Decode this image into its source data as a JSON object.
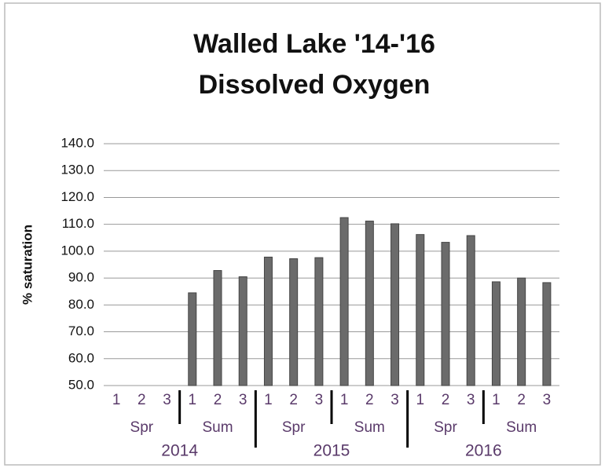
{
  "chart_data": {
    "type": "bar",
    "title": [
      "Walled Lake '14-'16",
      "Dissolved Oxygen"
    ],
    "y_label": "% saturation",
    "groups": [
      {
        "name": "2014",
        "subgroups": [
          {
            "name": "Spr",
            "categories": [
              "1",
              "2",
              "3"
            ]
          },
          {
            "name": "Sum",
            "categories": [
              "1",
              "2",
              "3"
            ]
          }
        ]
      },
      {
        "name": "2015",
        "subgroups": [
          {
            "name": "Spr",
            "categories": [
              "1",
              "2",
              "3"
            ]
          },
          {
            "name": "Sum",
            "categories": [
              "1",
              "2",
              "3"
            ]
          }
        ]
      },
      {
        "name": "2016",
        "subgroups": [
          {
            "name": "Spr",
            "categories": [
              "1",
              "2",
              "3"
            ]
          },
          {
            "name": "Sum",
            "categories": [
              "1",
              "2",
              "3"
            ]
          }
        ]
      }
    ],
    "values": [
      null,
      null,
      null,
      84.5,
      92.8,
      90.5,
      97.8,
      97.2,
      97.6,
      112.5,
      111.2,
      110.2,
      106.2,
      103.3,
      105.8,
      88.6,
      90.0,
      88.3
    ],
    "color": "#6b6b6b",
    "ylim": [
      50,
      140
    ],
    "yticks": [
      {
        "value": 50,
        "label": "50.0"
      },
      {
        "value": 60,
        "label": "60.0"
      },
      {
        "value": 70,
        "label": "70.0"
      },
      {
        "value": 80,
        "label": "80.0"
      },
      {
        "value": 90,
        "label": "90.0"
      },
      {
        "value": 100,
        "label": "100.0"
      },
      {
        "value": 110,
        "label": "110.0"
      },
      {
        "value": 120,
        "label": "120.0"
      },
      {
        "value": 130,
        "label": "130.0"
      },
      {
        "value": 140,
        "label": "140.0"
      }
    ],
    "grid": true
  }
}
